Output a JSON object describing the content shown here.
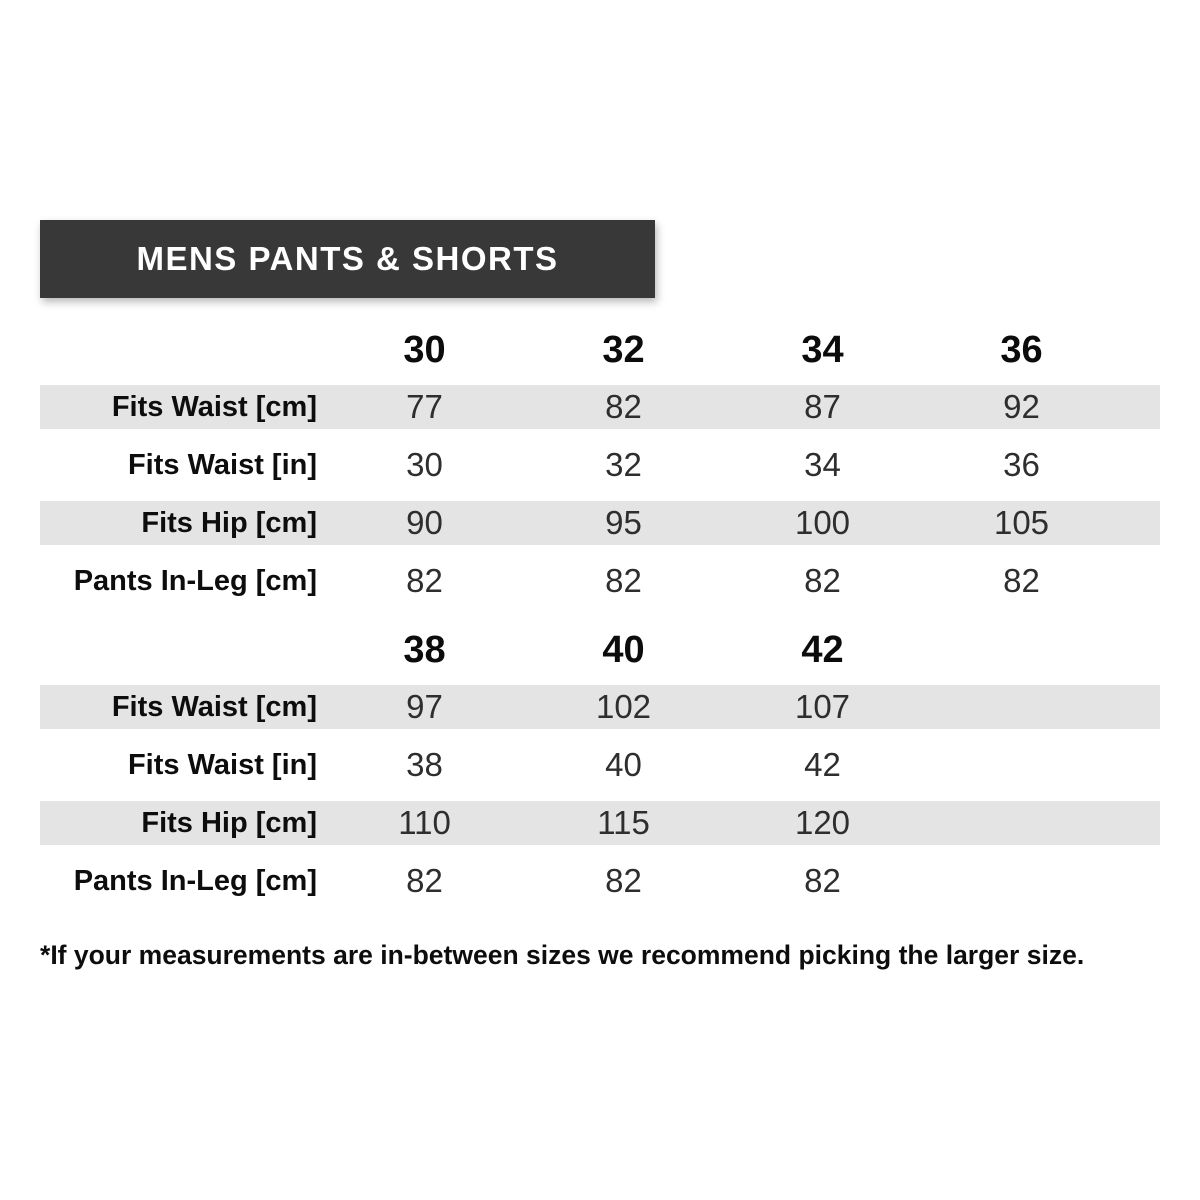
{
  "banner": {
    "title": "MENS PANTS & SHORTS",
    "bg_color": "#383838",
    "text_color": "#ffffff"
  },
  "colors": {
    "stripe": "#e4e4e4"
  },
  "sections": [
    {
      "sizes": [
        "30",
        "32",
        "34",
        "36"
      ],
      "rows": [
        {
          "label": "Fits Waist [cm]",
          "values": [
            "77",
            "82",
            "87",
            "92"
          ]
        },
        {
          "label": "Fits Waist [in]",
          "values": [
            "30",
            "32",
            "34",
            "36"
          ]
        },
        {
          "label": "Fits Hip [cm]",
          "values": [
            "90",
            "95",
            "100",
            "105"
          ]
        },
        {
          "label": "Pants In-Leg [cm]",
          "values": [
            "82",
            "82",
            "82",
            "82"
          ]
        }
      ]
    },
    {
      "sizes": [
        "38",
        "40",
        "42"
      ],
      "rows": [
        {
          "label": "Fits Waist [cm]",
          "values": [
            "97",
            "102",
            "107"
          ]
        },
        {
          "label": "Fits Waist [in]",
          "values": [
            "38",
            "40",
            "42"
          ]
        },
        {
          "label": "Fits Hip [cm]",
          "values": [
            "110",
            "115",
            "120"
          ]
        },
        {
          "label": "Pants In-Leg [cm]",
          "values": [
            "82",
            "82",
            "82"
          ]
        }
      ]
    }
  ],
  "footnote": "*If your measurements are in-between sizes we recommend picking the larger size."
}
